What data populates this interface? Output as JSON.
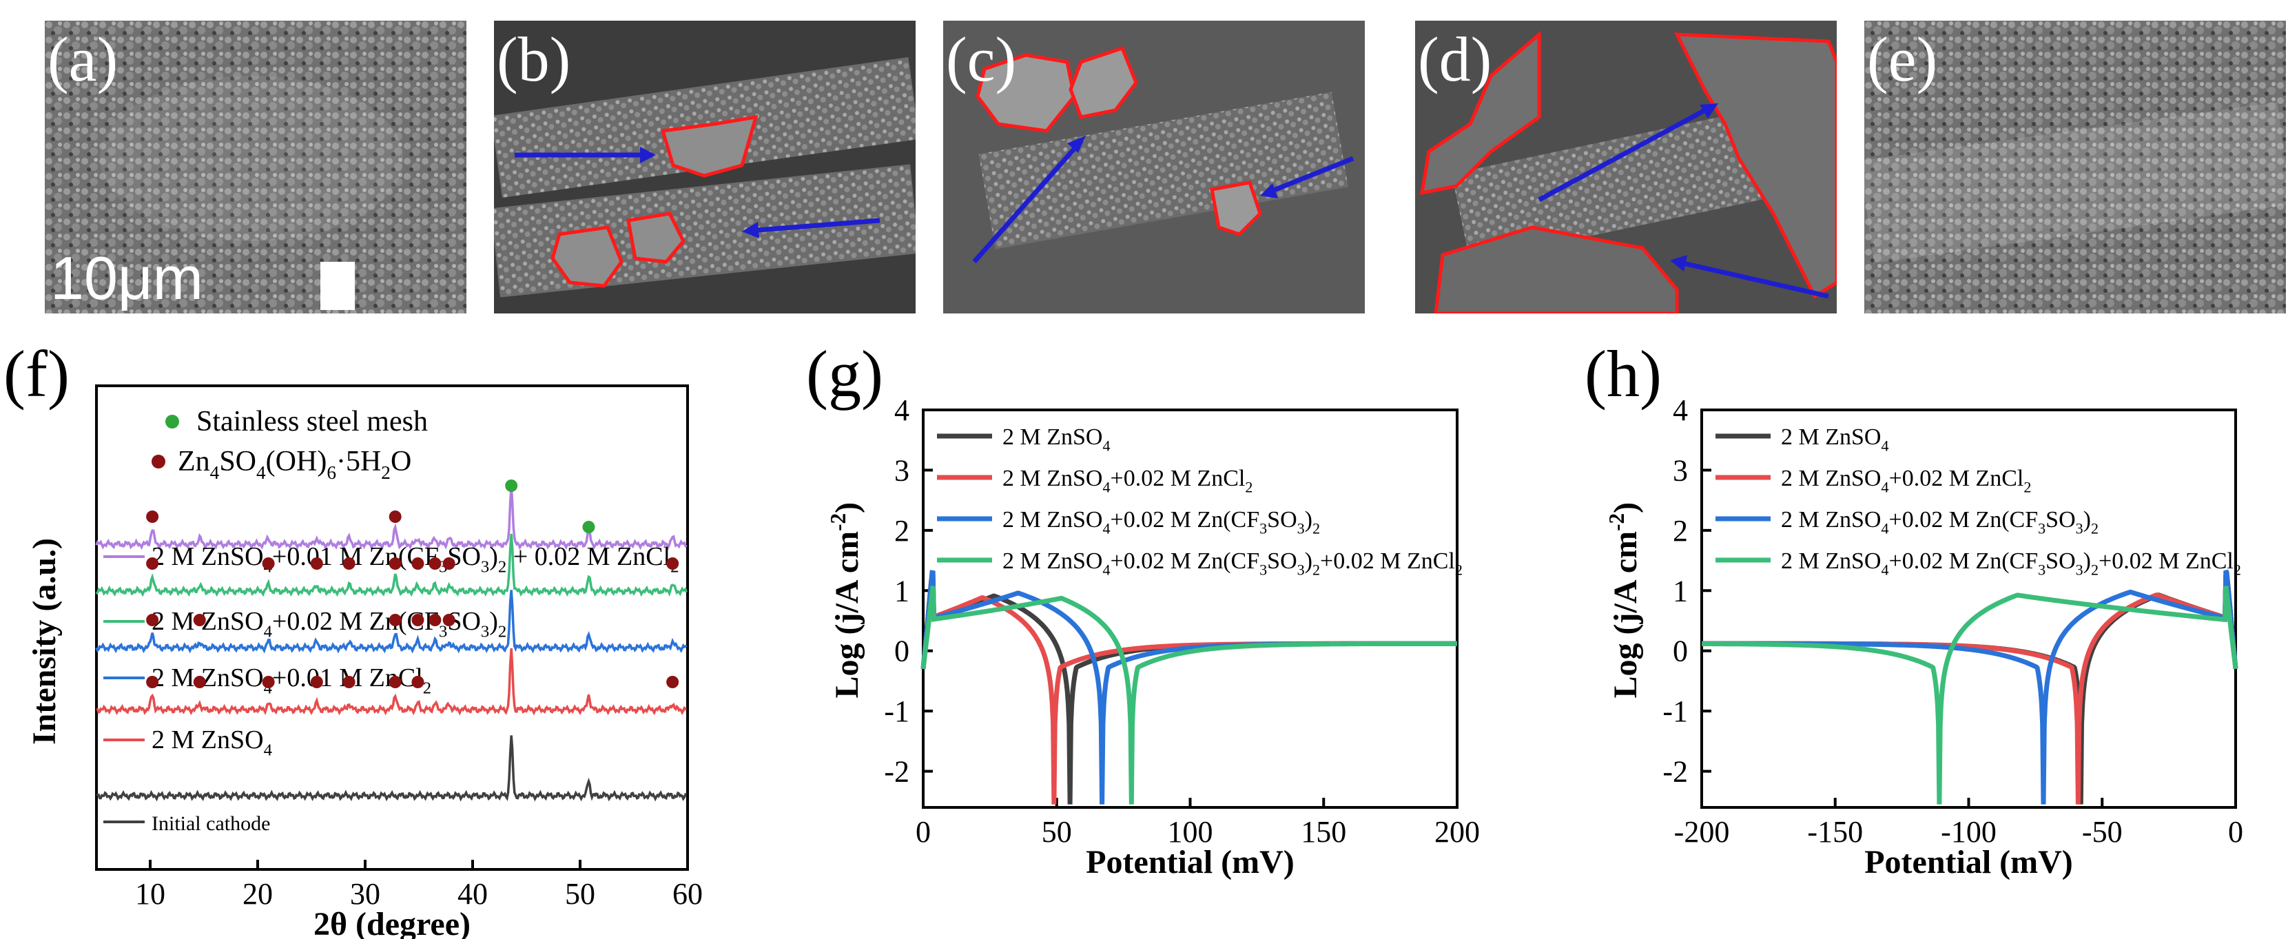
{
  "sem_panels": [
    {
      "label": "(a)",
      "scale_text": "10μm"
    },
    {
      "label": "(b)"
    },
    {
      "label": "(c)"
    },
    {
      "label": "(d)"
    },
    {
      "label": "(e)"
    }
  ],
  "colors": {
    "black": "#404040",
    "red": "#e74c4c",
    "blue": "#2a73d9",
    "green": "#3bbd7a",
    "purple": "#b07ee0",
    "marker_green": "#2fa63a",
    "marker_red": "#8b1212",
    "arrow_blue": "#1e1ed0",
    "outline_red": "#ff1a1a"
  },
  "chart_data": [
    {
      "id": "f",
      "panel_label": "(f)",
      "type": "line",
      "xlabel": "2θ (degree)",
      "ylabel": "Intensity (a.u.)",
      "xlim": [
        5,
        60
      ],
      "xticks": [
        10,
        20,
        30,
        40,
        50,
        60
      ],
      "legend_markers": [
        {
          "name": "Stainless steel mesh",
          "symbol": "●",
          "color": "#2fa63a"
        },
        {
          "name_parts": [
            "Zn",
            "4",
            "SO",
            "4",
            "(OH)",
            "6",
            "·5H",
            "2",
            "O"
          ],
          "symbol": "●",
          "color": "#8b1212"
        }
      ],
      "series": [
        {
          "name": "Initial cathode",
          "color": "#404040",
          "offset": 0,
          "label_parts": [
            "Initial cathode"
          ]
        },
        {
          "name": "2 M ZnSO4",
          "color": "#e74c4c",
          "offset": 1,
          "label_parts": [
            "2 M ZnSO",
            "4"
          ]
        },
        {
          "name": "2 M ZnSO4+0.01 M ZnCl2",
          "color": "#2a73d9",
          "offset": 2,
          "label_parts": [
            "2 M ZnSO",
            "4",
            "+0.01 M ZnCl",
            "2"
          ]
        },
        {
          "name": "2 M ZnSO4+0.02 M Zn(CF3SO3)2",
          "color": "#3bbd7a",
          "offset": 3,
          "label_parts": [
            "2 M ZnSO",
            "4",
            "+0.02 M Zn(CF",
            "3",
            "SO",
            "3",
            ")",
            "2"
          ]
        },
        {
          "name": "2 M ZnSO4+0.01 M Zn(CF3SO3)2 + 0.02 M ZnCl2",
          "color": "#b07ee0",
          "offset": 4,
          "label_parts": [
            "2 M ZnSO",
            "4",
            "+0.01 M Zn(CF",
            "3",
            "SO",
            "3",
            ")",
            "2",
            " + 0.02 M ZnCl",
            "2"
          ]
        }
      ],
      "peaks": {
        "steel": [
          43.6,
          50.8
        ],
        "zinc_salt": [
          10.2,
          14.6,
          21.0,
          25.5,
          28.5,
          32.8,
          34.9,
          36.5,
          37.8,
          58.6
        ]
      }
    },
    {
      "id": "g",
      "panel_label": "(g)",
      "type": "line",
      "xlabel": "Potential (mV)",
      "ylabel_parts": [
        "Log (j/A cm",
        "-2",
        ")"
      ],
      "xlim": [
        0,
        200
      ],
      "ylim": [
        -2.6,
        4
      ],
      "xticks": [
        0,
        50,
        100,
        150,
        200
      ],
      "yticks": [
        -2,
        -1,
        0,
        1,
        2,
        3,
        4
      ],
      "series": [
        {
          "name": "2 M ZnSO4",
          "color": "#404040",
          "corrosion_potential": 55,
          "label_parts": [
            "2 M ZnSO",
            "4"
          ]
        },
        {
          "name": "2 M ZnSO4+0.02 M ZnCl2",
          "color": "#e74c4c",
          "corrosion_potential": 49,
          "label_parts": [
            "2 M ZnSO",
            "4",
            "+0.02 M ZnCl",
            "2"
          ]
        },
        {
          "name": "2 M ZnSO4+0.02 M Zn(CF3SO3)2",
          "color": "#2a73d9",
          "corrosion_potential": 67,
          "label_parts": [
            "2 M ZnSO",
            "4",
            "+0.02 M Zn(CF",
            "3",
            "SO",
            "3",
            ")",
            "2"
          ]
        },
        {
          "name": "2 M ZnSO4+0.02 M Zn(CF3SO3)2+0.02 M ZnCl2",
          "color": "#3bbd7a",
          "corrosion_potential": 78,
          "label_parts": [
            "2 M ZnSO",
            "4",
            "+0.02 M Zn(CF",
            "3",
            "SO",
            "3",
            ")",
            "2",
            "+0.02 M ZnCl",
            "2"
          ]
        }
      ]
    },
    {
      "id": "h",
      "panel_label": "(h)",
      "type": "line",
      "xlabel": "Potential (mV)",
      "ylabel_parts": [
        "Log (j/A cm",
        "-2",
        ")"
      ],
      "xlim": [
        -200,
        0
      ],
      "ylim": [
        -2.6,
        4
      ],
      "xticks": [
        -200,
        -150,
        -100,
        -50,
        0
      ],
      "yticks": [
        -2,
        -1,
        0,
        1,
        2,
        3,
        4
      ],
      "series": [
        {
          "name": "2 M ZnSO4",
          "color": "#404040",
          "corrosion_potential": -58,
          "label_parts": [
            "2 M ZnSO",
            "4"
          ]
        },
        {
          "name": "2 M ZnSO4+0.02 M ZnCl2",
          "color": "#e74c4c",
          "corrosion_potential": -59,
          "label_parts": [
            "2 M ZnSO",
            "4",
            "+0.02 M ZnCl",
            "2"
          ]
        },
        {
          "name": "2 M ZnSO4+0.02 M Zn(CF3SO3)2",
          "color": "#2a73d9",
          "corrosion_potential": -72,
          "label_parts": [
            "2 M ZnSO",
            "4",
            "+0.02 M Zn(CF",
            "3",
            "SO",
            "3",
            ")",
            "2"
          ]
        },
        {
          "name": "2 M ZnSO4+0.02 M Zn(CF3SO3)2+0.02 M ZnCl2",
          "color": "#3bbd7a",
          "corrosion_potential": -111,
          "label_parts": [
            "2 M ZnSO",
            "4",
            "+0.02 M Zn(CF",
            "3",
            "SO",
            "3",
            ")",
            "2",
            "+0.02 M ZnCl",
            "2"
          ]
        }
      ]
    }
  ]
}
